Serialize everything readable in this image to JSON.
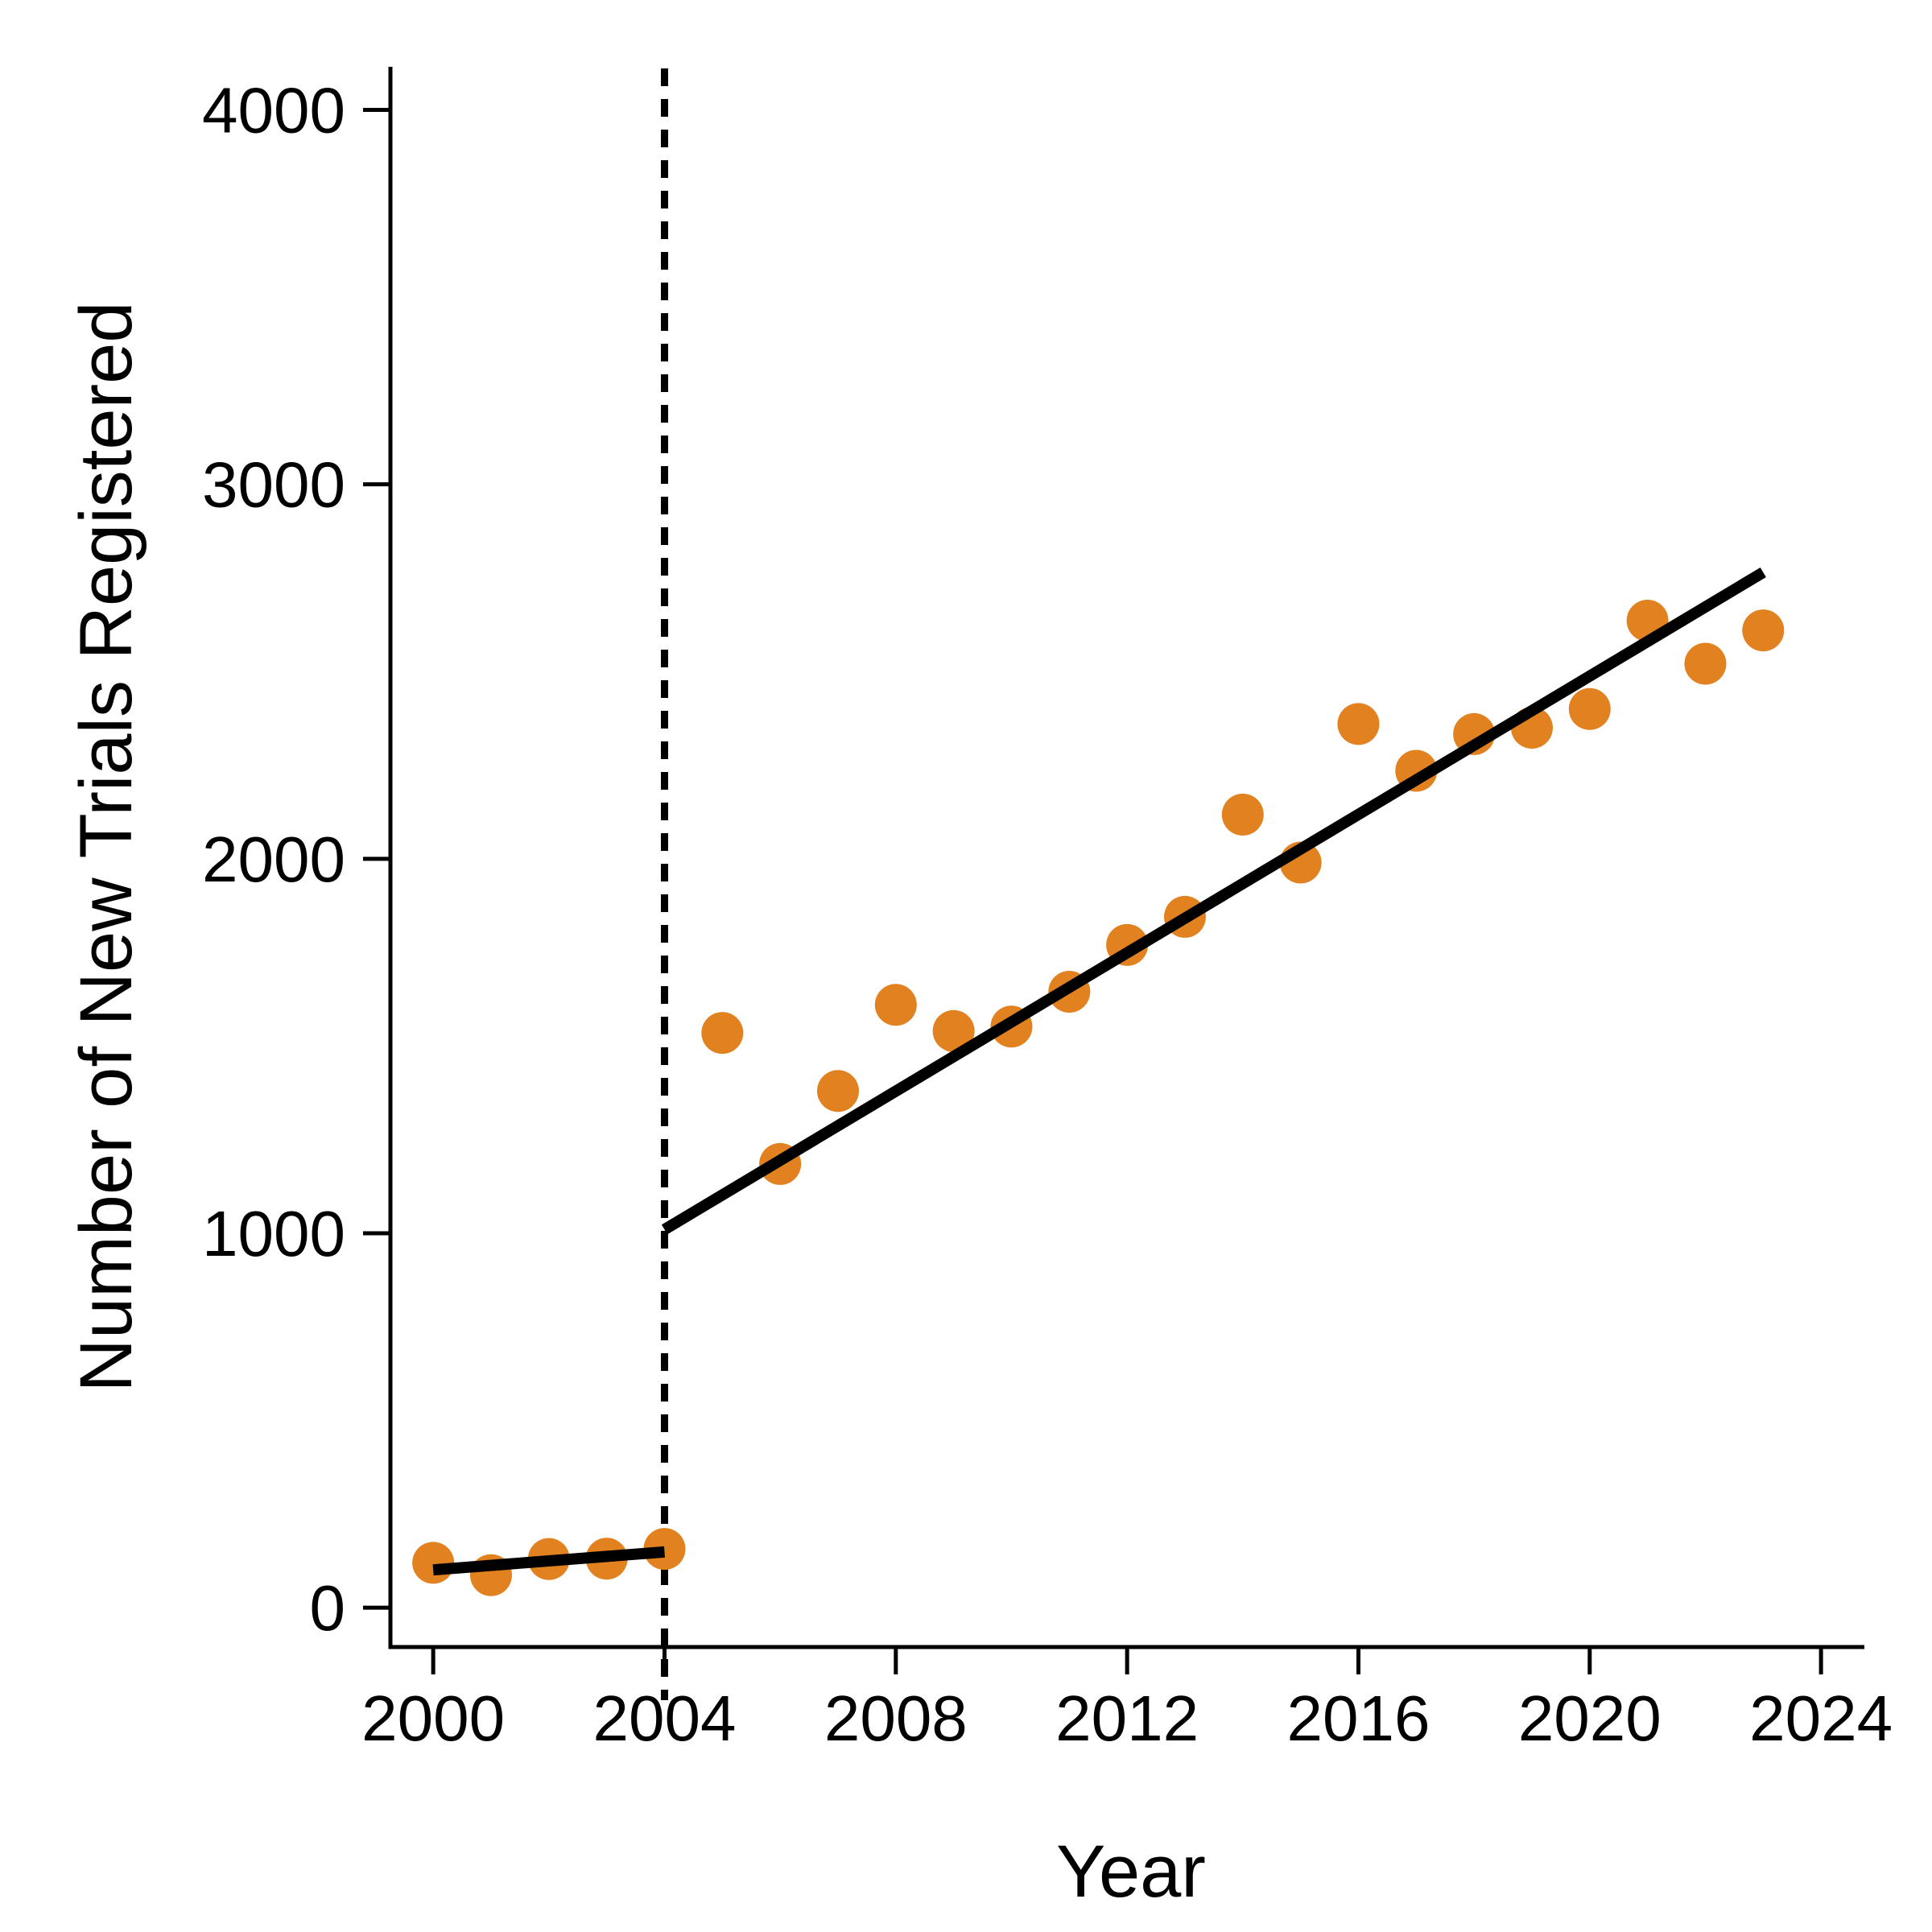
{
  "chart_data": {
    "type": "scatter",
    "title": "",
    "xlabel": "Year",
    "ylabel": "Number of New Trials Registered",
    "x_ticks": [
      "2000",
      "2004",
      "2008",
      "2012",
      "2016",
      "2020",
      "2024"
    ],
    "x_tick_values": [
      2000,
      2004,
      2008,
      2012,
      2016,
      2020,
      2024
    ],
    "y_ticks": [
      "0",
      "1000",
      "2000",
      "3000",
      "4000"
    ],
    "y_tick_values": [
      0,
      1000,
      2000,
      3000,
      4000
    ],
    "xlim": [
      1999.26,
      2024.75
    ],
    "ylim": [
      -105,
      4115
    ],
    "grid": false,
    "legend_position": "none",
    "points": [
      {
        "year": 2000,
        "value": 120
      },
      {
        "year": 2001,
        "value": 87
      },
      {
        "year": 2002,
        "value": 130
      },
      {
        "year": 2003,
        "value": 131
      },
      {
        "year": 2004,
        "value": 157
      },
      {
        "year": 2005,
        "value": 1535
      },
      {
        "year": 2006,
        "value": 1185
      },
      {
        "year": 2007,
        "value": 1380
      },
      {
        "year": 2008,
        "value": 1610
      },
      {
        "year": 2009,
        "value": 1540
      },
      {
        "year": 2010,
        "value": 1552
      },
      {
        "year": 2011,
        "value": 1645
      },
      {
        "year": 2012,
        "value": 1770
      },
      {
        "year": 2013,
        "value": 1845
      },
      {
        "year": 2014,
        "value": 2118
      },
      {
        "year": 2015,
        "value": 1990
      },
      {
        "year": 2016,
        "value": 2360
      },
      {
        "year": 2017,
        "value": 2235
      },
      {
        "year": 2018,
        "value": 2333
      },
      {
        "year": 2019,
        "value": 2350
      },
      {
        "year": 2020,
        "value": 2400
      },
      {
        "year": 2021,
        "value": 2636
      },
      {
        "year": 2022,
        "value": 2521
      },
      {
        "year": 2023,
        "value": 2610
      }
    ],
    "trend_segments": [
      {
        "name": "pre-2004-fit",
        "x1": 2000,
        "y1": 101,
        "x2": 2004,
        "y2": 149
      },
      {
        "name": "post-2004-fit",
        "x1": 2004,
        "y1": 1010,
        "x2": 2023,
        "y2": 2765
      }
    ],
    "vline": {
      "year": 2004,
      "style": "dashed"
    },
    "colors": {
      "points": "#E2811F",
      "trend_line": "#000000",
      "vline": "#000000",
      "axis": "#000000",
      "background": "#FFFFFF"
    }
  }
}
